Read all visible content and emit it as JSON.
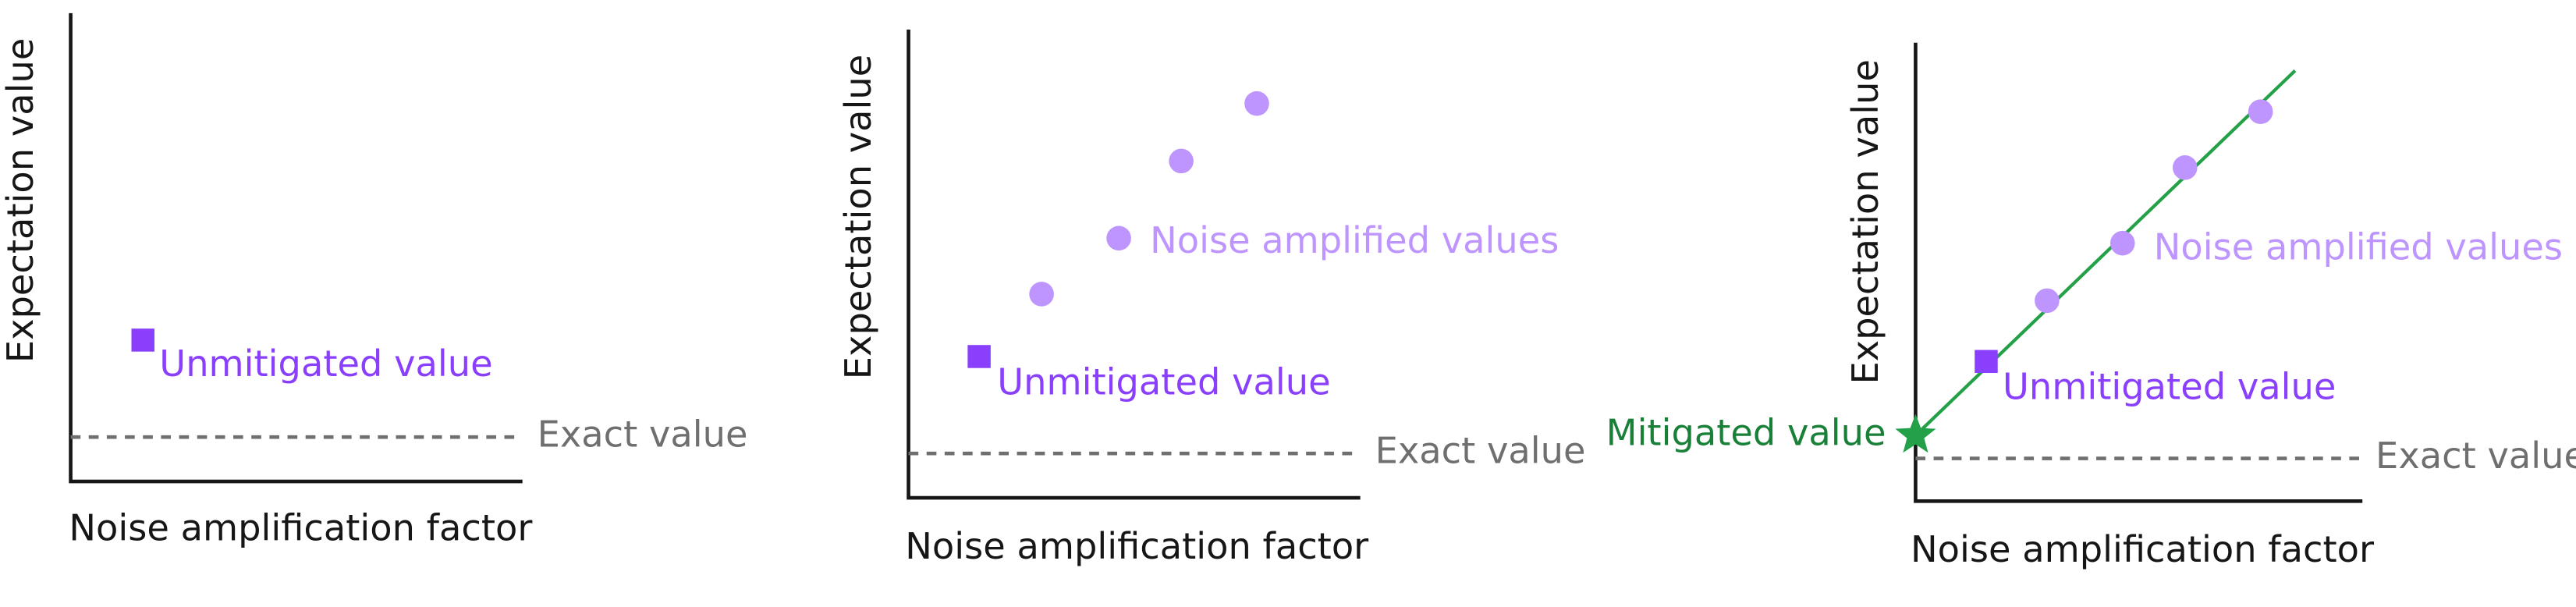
{
  "panels": [
    {
      "y_label": "Expectation value",
      "x_label": "Noise amplification factor",
      "unmitigated_label": "Unmitigated value",
      "exact_label": "Exact value"
    },
    {
      "y_label": "Expectation value",
      "x_label": "Noise amplification factor",
      "unmitigated_label": "Unmitigated value",
      "noise_label": "Noise amplified values",
      "exact_label": "Exact value"
    },
    {
      "y_label": "Expectation value",
      "x_label": "Noise amplification factor",
      "unmitigated_label": "Unmitigated value",
      "noise_label": "Noise amplified values",
      "exact_label": "Exact value",
      "mitigated_label": "Mitigated value"
    }
  ]
}
